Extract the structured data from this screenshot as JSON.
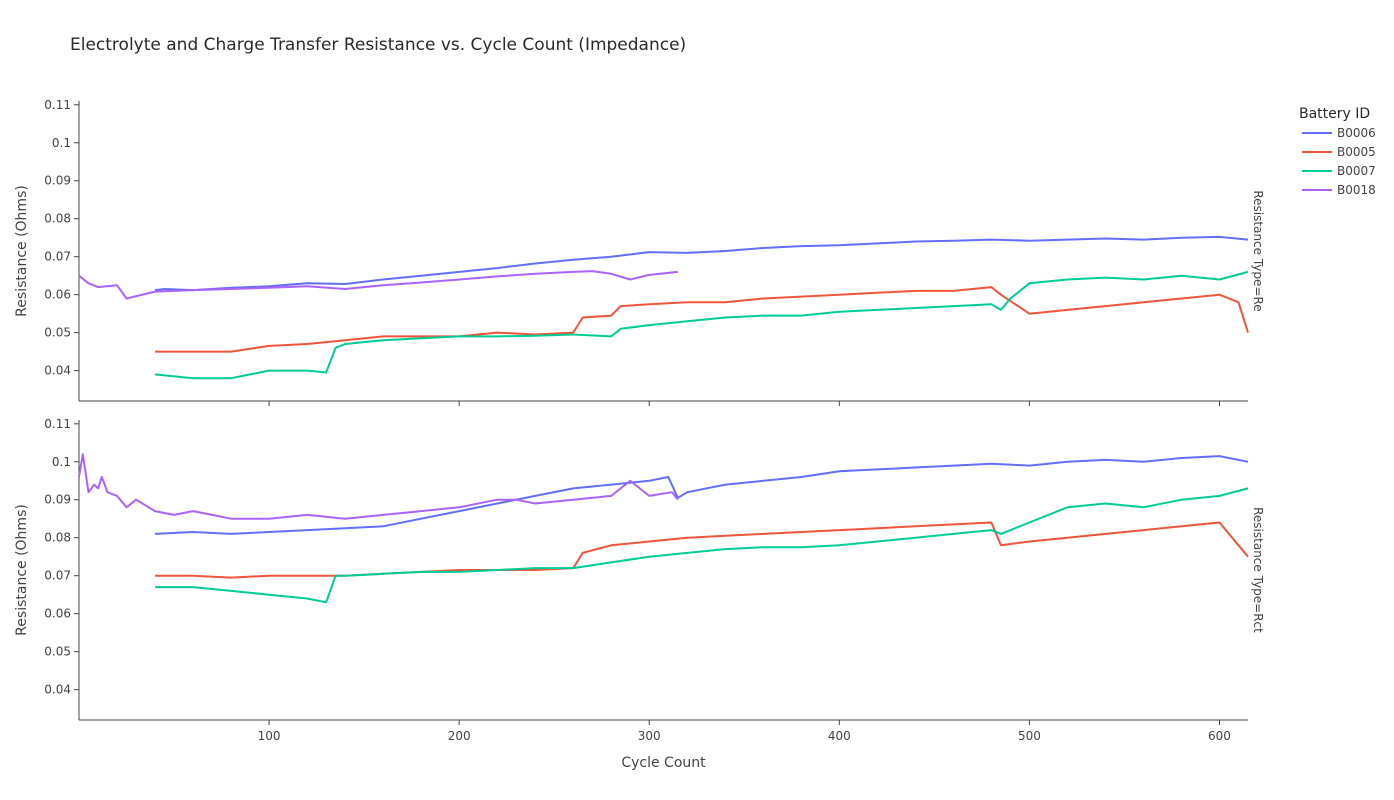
{
  "title": "Electrolyte and Charge Transfer Resistance vs. Cycle Count (Impedance)",
  "legend": {
    "title": "Battery ID",
    "placement": "top-right"
  },
  "colors": {
    "B0006": "#636efa",
    "B0005": "#ef553b",
    "B0007": "#00cc96",
    "B0018": "#ab63fa"
  },
  "chart_data": {
    "type": "line",
    "xlabel": "Cycle Count",
    "ylabel": "Resistance (Ohms)",
    "xlim": [
      0,
      615
    ],
    "x_ticks": [
      100,
      200,
      300,
      400,
      500,
      600
    ],
    "ylim": [
      0.032,
      0.111
    ],
    "y_ticks": [
      0.04,
      0.05,
      0.06,
      0.07,
      0.08,
      0.09,
      0.1,
      0.11
    ],
    "grid": false,
    "panels": [
      {
        "facet": "Resistance Type=Re",
        "series": [
          {
            "name": "B0006",
            "x": [
              40,
              45,
              60,
              80,
              100,
              120,
              140,
              160,
              180,
              200,
              220,
              240,
              260,
              280,
              300,
              320,
              340,
              360,
              380,
              400,
              420,
              440,
              460,
              480,
              500,
              520,
              540,
              560,
              580,
              600,
              615
            ],
            "y": [
              0.0612,
              0.0615,
              0.0612,
              0.0618,
              0.0622,
              0.063,
              0.0628,
              0.064,
              0.065,
              0.066,
              0.067,
              0.0682,
              0.0692,
              0.07,
              0.0712,
              0.071,
              0.0715,
              0.0723,
              0.0728,
              0.073,
              0.0735,
              0.074,
              0.0742,
              0.0745,
              0.0742,
              0.0745,
              0.0748,
              0.0745,
              0.075,
              0.0752,
              0.0745
            ]
          },
          {
            "name": "B0005",
            "x": [
              40,
              60,
              80,
              100,
              120,
              140,
              160,
              180,
              200,
              220,
              240,
              260,
              265,
              280,
              285,
              300,
              320,
              340,
              360,
              380,
              400,
              420,
              440,
              460,
              480,
              485,
              500,
              520,
              540,
              560,
              580,
              600,
              610,
              615
            ],
            "y": [
              0.045,
              0.045,
              0.045,
              0.0465,
              0.047,
              0.048,
              0.049,
              0.049,
              0.049,
              0.05,
              0.0495,
              0.05,
              0.054,
              0.0545,
              0.057,
              0.0575,
              0.058,
              0.058,
              0.059,
              0.0595,
              0.06,
              0.0605,
              0.061,
              0.061,
              0.062,
              0.06,
              0.055,
              0.056,
              0.057,
              0.058,
              0.059,
              0.06,
              0.058,
              0.05
            ]
          },
          {
            "name": "B0007",
            "x": [
              40,
              60,
              80,
              100,
              120,
              130,
              135,
              140,
              160,
              180,
              200,
              220,
              240,
              260,
              280,
              285,
              300,
              320,
              340,
              360,
              380,
              400,
              420,
              440,
              460,
              480,
              485,
              490,
              500,
              520,
              540,
              560,
              580,
              600,
              615
            ],
            "y": [
              0.039,
              0.038,
              0.038,
              0.04,
              0.04,
              0.0395,
              0.046,
              0.047,
              0.048,
              0.0485,
              0.049,
              0.049,
              0.0492,
              0.0495,
              0.049,
              0.051,
              0.052,
              0.053,
              0.054,
              0.0545,
              0.0545,
              0.0555,
              0.056,
              0.0565,
              0.057,
              0.0575,
              0.056,
              0.059,
              0.063,
              0.064,
              0.0645,
              0.064,
              0.065,
              0.064,
              0.066
            ]
          },
          {
            "name": "B0018",
            "x": [
              0,
              5,
              10,
              20,
              25,
              40,
              60,
              80,
              100,
              120,
              140,
              160,
              180,
              200,
              220,
              240,
              260,
              270,
              280,
              290,
              300,
              315
            ],
            "y": [
              0.065,
              0.063,
              0.062,
              0.0625,
              0.059,
              0.0608,
              0.0612,
              0.0615,
              0.0618,
              0.0622,
              0.0615,
              0.0625,
              0.0632,
              0.064,
              0.0648,
              0.0655,
              0.066,
              0.0662,
              0.0655,
              0.064,
              0.0652,
              0.066
            ]
          }
        ]
      },
      {
        "facet": "Resistance Type=Rct",
        "series": [
          {
            "name": "B0006",
            "x": [
              40,
              60,
              80,
              100,
              120,
              140,
              160,
              180,
              200,
              220,
              240,
              260,
              280,
              300,
              310,
              315,
              320,
              340,
              360,
              380,
              400,
              420,
              440,
              460,
              480,
              500,
              520,
              540,
              560,
              580,
              600,
              615
            ],
            "y": [
              0.081,
              0.0815,
              0.081,
              0.0815,
              0.082,
              0.0825,
              0.083,
              0.085,
              0.087,
              0.089,
              0.091,
              0.093,
              0.094,
              0.095,
              0.096,
              0.0905,
              0.092,
              0.094,
              0.095,
              0.096,
              0.0975,
              0.098,
              0.0985,
              0.099,
              0.0995,
              0.099,
              0.1,
              0.1005,
              0.1,
              0.101,
              0.1015,
              0.1
            ]
          },
          {
            "name": "B0005",
            "x": [
              40,
              60,
              80,
              100,
              120,
              140,
              160,
              180,
              200,
              220,
              240,
              260,
              265,
              280,
              300,
              320,
              340,
              360,
              380,
              400,
              420,
              440,
              460,
              480,
              485,
              500,
              520,
              540,
              560,
              580,
              600,
              615
            ],
            "y": [
              0.07,
              0.07,
              0.0695,
              0.07,
              0.07,
              0.07,
              0.0705,
              0.071,
              0.0715,
              0.0715,
              0.0715,
              0.072,
              0.076,
              0.078,
              0.079,
              0.08,
              0.0805,
              0.081,
              0.0815,
              0.082,
              0.0825,
              0.083,
              0.0835,
              0.084,
              0.078,
              0.079,
              0.08,
              0.081,
              0.082,
              0.083,
              0.084,
              0.075
            ]
          },
          {
            "name": "B0007",
            "x": [
              40,
              60,
              80,
              100,
              120,
              130,
              135,
              140,
              160,
              180,
              200,
              220,
              240,
              260,
              280,
              300,
              320,
              340,
              360,
              380,
              400,
              420,
              440,
              460,
              480,
              485,
              500,
              520,
              540,
              560,
              580,
              600,
              615
            ],
            "y": [
              0.067,
              0.067,
              0.066,
              0.065,
              0.064,
              0.063,
              0.07,
              0.07,
              0.0705,
              0.071,
              0.071,
              0.0715,
              0.072,
              0.072,
              0.0735,
              0.075,
              0.076,
              0.077,
              0.0775,
              0.0775,
              0.078,
              0.079,
              0.08,
              0.081,
              0.082,
              0.081,
              0.084,
              0.088,
              0.089,
              0.088,
              0.09,
              0.091,
              0.093
            ]
          },
          {
            "name": "B0018",
            "x": [
              0,
              2,
              5,
              8,
              10,
              12,
              15,
              20,
              25,
              30,
              40,
              50,
              60,
              70,
              80,
              100,
              120,
              140,
              160,
              180,
              200,
              220,
              230,
              240,
              260,
              280,
              290,
              300,
              312,
              315
            ],
            "y": [
              0.096,
              0.102,
              0.092,
              0.094,
              0.093,
              0.096,
              0.092,
              0.091,
              0.088,
              0.09,
              0.087,
              0.086,
              0.087,
              0.086,
              0.085,
              0.085,
              0.086,
              0.085,
              0.086,
              0.087,
              0.088,
              0.09,
              0.09,
              0.089,
              0.09,
              0.091,
              0.095,
              0.091,
              0.092,
              0.09
            ]
          }
        ]
      }
    ]
  }
}
